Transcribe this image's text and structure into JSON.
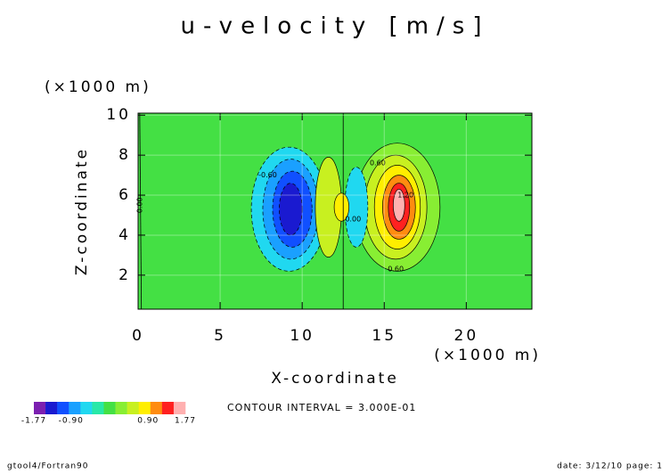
{
  "chart_data": {
    "type": "contour",
    "title": "u-velocity [m/s]",
    "x_label": "X-coordinate",
    "y_label": "Z-coordinate",
    "x_unit": "(×1000 m)",
    "y_unit": "(×1000 m)",
    "xlim": [
      0,
      24
    ],
    "ylim": [
      0.3,
      10.1
    ],
    "xticks": [
      0,
      5,
      10,
      15,
      20
    ],
    "yticks": [
      2,
      4,
      6,
      8,
      10
    ],
    "grid": true,
    "colorbar": {
      "colors": [
        "#7b1fb0",
        "#1a1ad0",
        "#1050ff",
        "#1aa0ff",
        "#20d8f0",
        "#28e8a8",
        "#44e044",
        "#88ee33",
        "#c8f020",
        "#ffee00",
        "#ff8c10",
        "#ff2020",
        "#ffb0b0"
      ],
      "range": [
        -1.77,
        1.77
      ],
      "ticks": [
        -1.77,
        {
          "value": -0.9,
          "label": "-0.90"
        },
        {
          "value": 0.9,
          "label": "0.90"
        },
        1.77
      ]
    },
    "contour_labels": [
      "-0.60",
      "0.60",
      "0.00",
      "0.00",
      "1.20",
      "0.60"
    ],
    "note": "CONTOUR INTERVAL = 3.000E-01"
  },
  "footer": {
    "left": "gtool4/Fortran90",
    "right": "date: 3/12/10 page: 1"
  }
}
